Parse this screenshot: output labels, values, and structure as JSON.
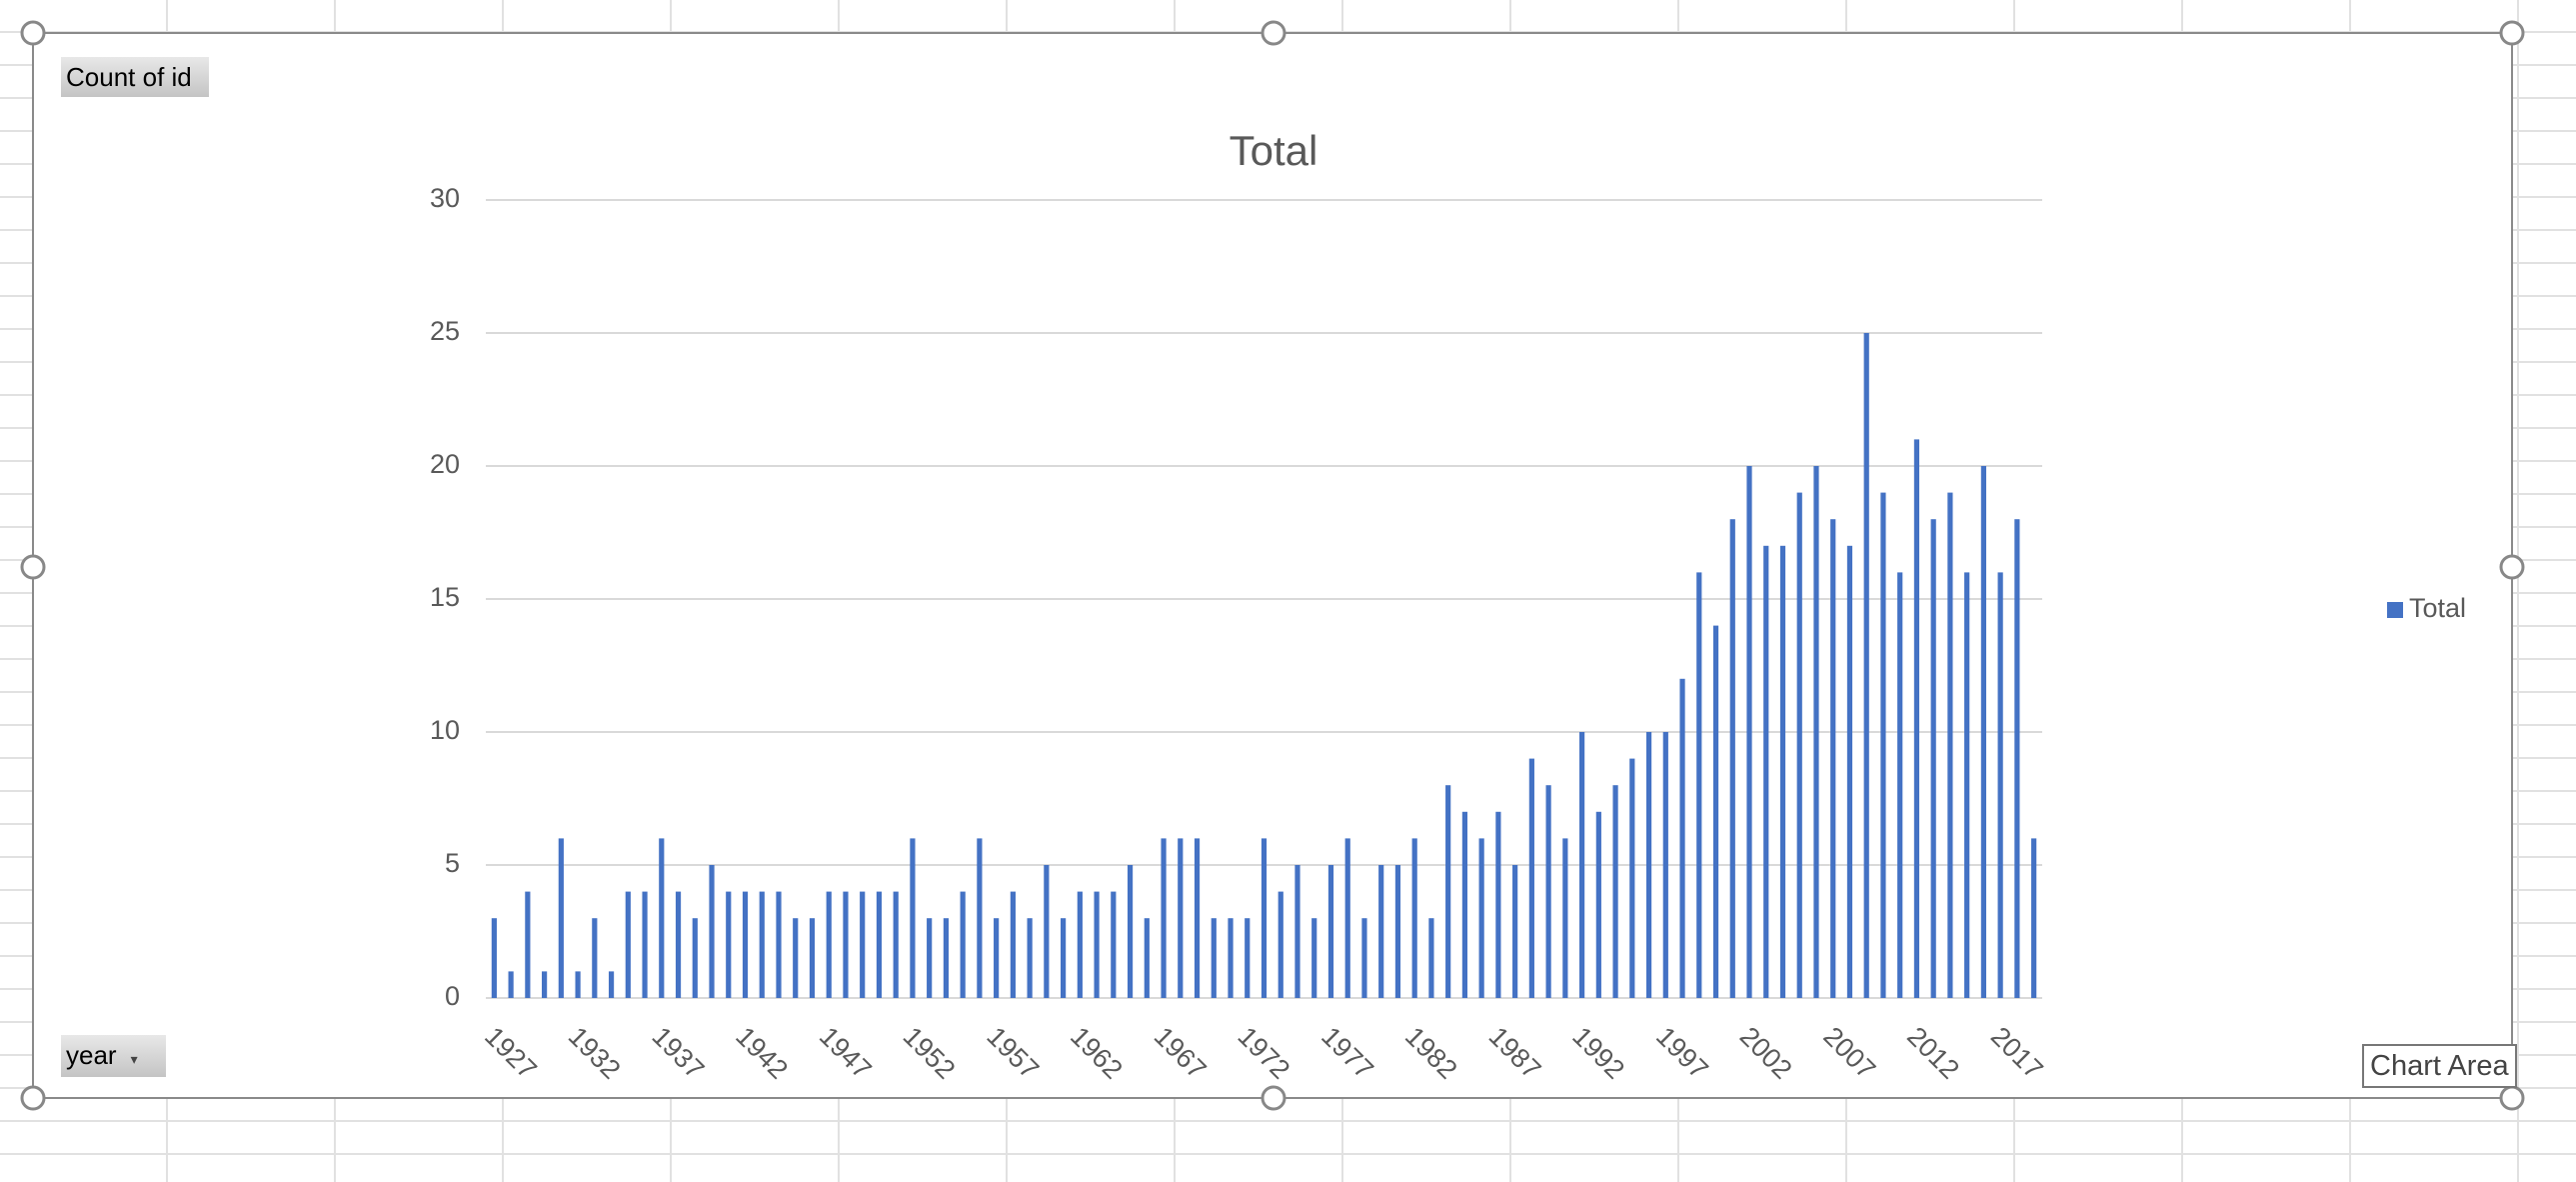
{
  "chart_data": {
    "type": "bar",
    "title": "Total",
    "categories": [
      "1927",
      null,
      null,
      null,
      null,
      "1932",
      null,
      null,
      null,
      null,
      "1937",
      null,
      null,
      null,
      null,
      "1942",
      null,
      null,
      null,
      null,
      "1947",
      null,
      null,
      null,
      null,
      "1952",
      null,
      null,
      null,
      null,
      "1957",
      null,
      null,
      null,
      null,
      "1962",
      null,
      null,
      null,
      null,
      "1967",
      null,
      null,
      null,
      null,
      "1972",
      null,
      null,
      null,
      null,
      "1977",
      null,
      null,
      null,
      null,
      "1982",
      null,
      null,
      null,
      null,
      "1987",
      null,
      null,
      null,
      null,
      "1992",
      null,
      null,
      null,
      null,
      "1997",
      null,
      null,
      null,
      null,
      "2002",
      null,
      null,
      null,
      null,
      "2007",
      null,
      null,
      null,
      null,
      "2012",
      null,
      null,
      null,
      null,
      "2017",
      null,
      null
    ],
    "series": [
      {
        "name": "Total",
        "color": "#4472c4",
        "values": [
          3,
          1,
          4,
          1,
          6,
          1,
          3,
          1,
          4,
          4,
          6,
          4,
          3,
          5,
          4,
          4,
          4,
          4,
          3,
          3,
          4,
          4,
          4,
          4,
          4,
          6,
          3,
          3,
          4,
          6,
          3,
          4,
          3,
          5,
          3,
          4,
          4,
          4,
          5,
          3,
          6,
          6,
          6,
          3,
          3,
          3,
          6,
          4,
          5,
          3,
          5,
          6,
          3,
          5,
          5,
          6,
          3,
          8,
          7,
          6,
          7,
          5,
          9,
          8,
          6,
          10,
          7,
          8,
          9,
          10,
          10,
          12,
          16,
          14,
          18,
          20,
          17,
          17,
          19,
          20,
          18,
          17,
          25,
          19,
          16,
          21,
          18,
          19,
          16,
          20,
          16,
          18,
          6
        ]
      }
    ],
    "ylim": [
      0,
      30
    ],
    "yticks": [
      0,
      5,
      10,
      15,
      20,
      25,
      30
    ],
    "grid": true,
    "legend": "right"
  },
  "field_buttons": {
    "value_field": "Count of id",
    "axis_field": "year"
  },
  "tooltip": "Chart Area"
}
